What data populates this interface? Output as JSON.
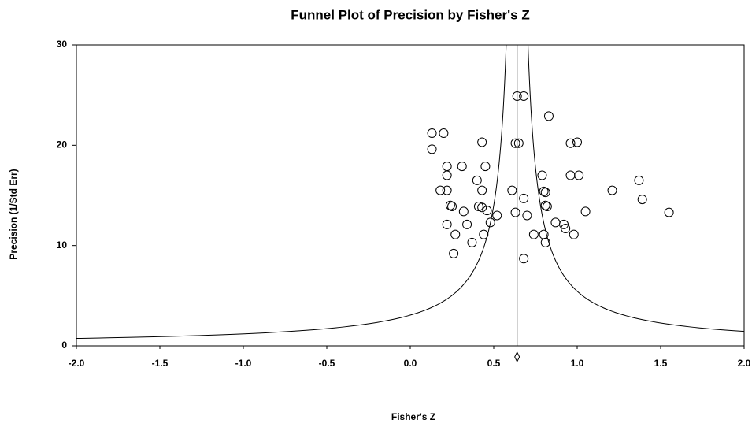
{
  "chart_data": {
    "type": "scatter",
    "title": "Funnel Plot of Precision by Fisher's Z",
    "x_label": "Fisher's Z",
    "y_label": "Precision (1/Std Err)",
    "xlim": [
      -2,
      2
    ],
    "ylim": [
      0,
      30
    ],
    "xticks": [
      {
        "value": -2,
        "label": "-2.0"
      },
      -1.5,
      {
        "value": -1,
        "label": "-1.0"
      },
      -0.5,
      {
        "value": 0,
        "label": "0.0"
      },
      0.5,
      {
        "value": 1,
        "label": "1.0"
      },
      1.5,
      {
        "value": 2,
        "label": "2.0"
      }
    ],
    "yticks": [
      0,
      10,
      20,
      30
    ],
    "pooled_estimate": 0.64,
    "color": "#000000",
    "x": [
      0.13,
      0.2,
      0.13,
      0.64,
      0.68,
      0.83,
      0.43,
      0.63,
      0.65,
      0.96,
      1.0,
      0.22,
      0.45,
      0.31,
      0.22,
      0.4,
      0.79,
      0.96,
      1.01,
      1.37,
      0.18,
      0.22,
      0.43,
      0.61,
      0.8,
      0.81,
      1.21,
      1.39,
      0.68,
      0.24,
      0.25,
      0.46,
      0.41,
      0.43,
      0.82,
      0.81,
      0.32,
      0.52,
      0.63,
      0.7,
      1.05,
      1.55,
      0.34,
      0.22,
      0.48,
      0.87,
      0.92,
      0.44,
      0.27,
      0.74,
      0.8,
      0.81,
      0.37,
      0.98,
      0.93,
      0.26,
      0.68
    ],
    "values": [
      21.2,
      21.2,
      19.6,
      24.9,
      24.9,
      22.9,
      20.3,
      20.2,
      20.2,
      20.2,
      20.3,
      17.9,
      17.9,
      17.9,
      17.0,
      16.5,
      17.0,
      17.0,
      17.0,
      16.5,
      15.5,
      15.5,
      15.5,
      15.5,
      15.4,
      15.3,
      15.5,
      14.6,
      14.7,
      14.0,
      13.9,
      13.5,
      13.9,
      13.8,
      13.9,
      14.0,
      13.4,
      13.0,
      13.3,
      13.0,
      13.4,
      13.3,
      12.1,
      12.1,
      12.3,
      12.3,
      12.1,
      11.1,
      11.1,
      11.1,
      11.1,
      10.3,
      10.3,
      11.1,
      11.7,
      9.2,
      8.7
    ]
  }
}
